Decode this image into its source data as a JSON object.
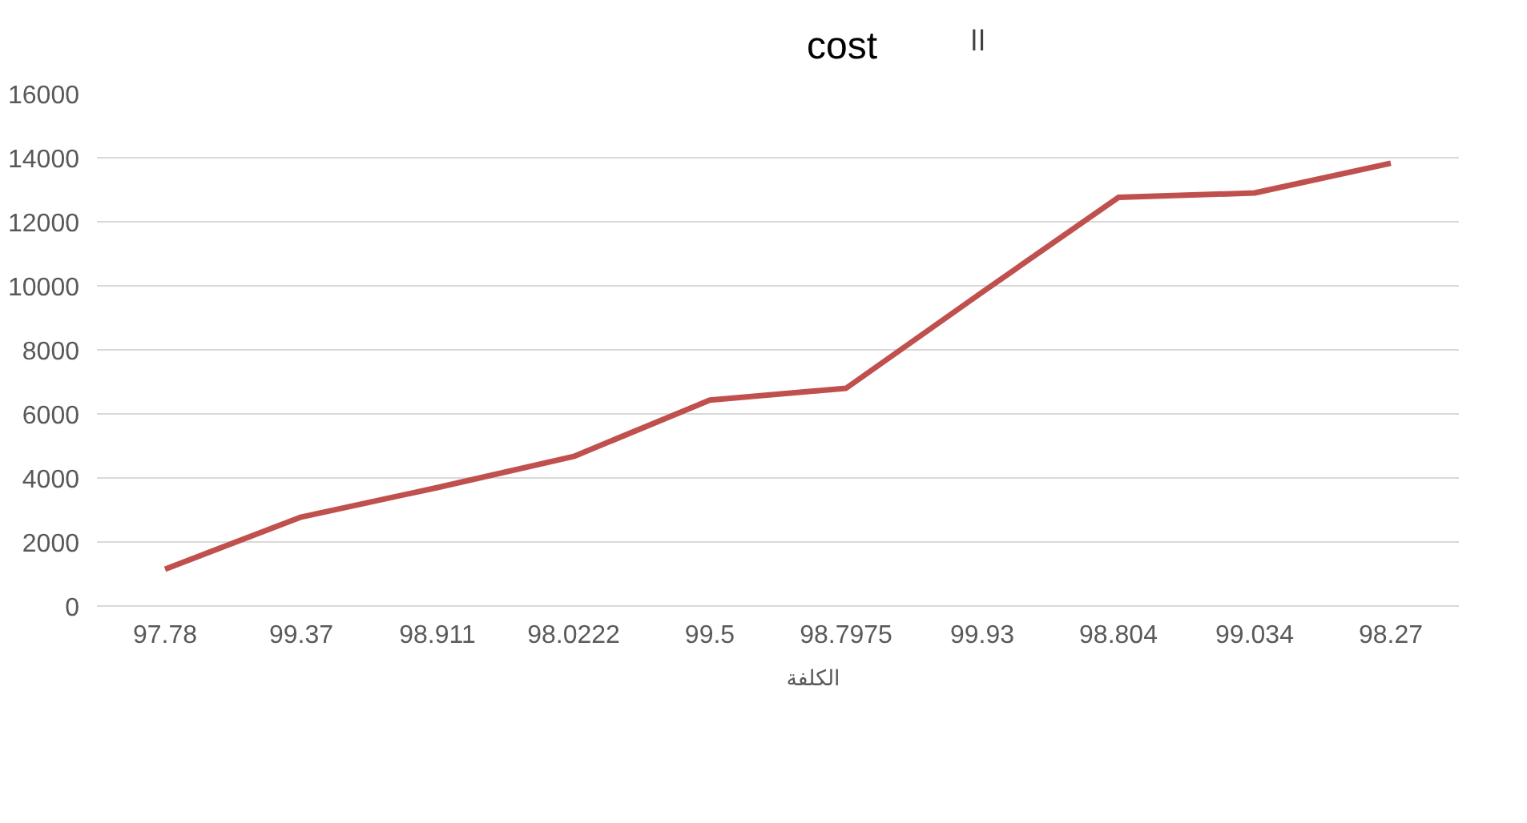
{
  "chart_data": {
    "type": "line",
    "title": "cost",
    "annotations": [
      "اا"
    ],
    "categories": [
      "97.78",
      "99.37",
      "98.911",
      "98.0222",
      "99.5",
      "98.7975",
      "99.93",
      "98.804",
      "99.034",
      "98.27"
    ],
    "series": [
      {
        "name": "الكلفة",
        "color": "#c0504d",
        "values": [
          1150,
          2780,
          3700,
          4670,
          6430,
          6800,
          9800,
          12760,
          12900,
          13830
        ]
      }
    ],
    "ylim": [
      0,
      16000
    ],
    "yticks": [
      0,
      2000,
      4000,
      6000,
      8000,
      10000,
      12000,
      14000,
      16000
    ],
    "grid": "y",
    "legend": "bottom",
    "marker": "none",
    "line_style": "solid"
  }
}
